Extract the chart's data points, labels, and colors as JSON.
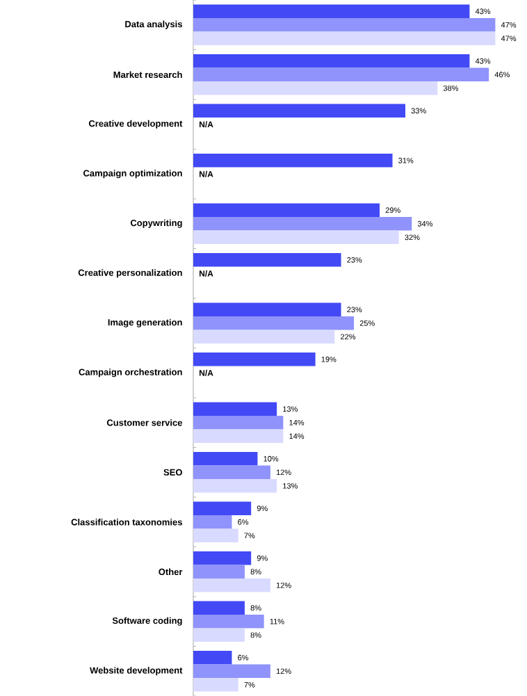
{
  "chart_data": {
    "type": "bar",
    "orientation": "horizontal",
    "tick_labels": "y",
    "categories": [
      "Data analysis",
      "Market research",
      "Creative development",
      "Campaign optimization",
      "Copywriting",
      "Creative personalization",
      "Image generation",
      "Campaign orchestration",
      "Customer service",
      "SEO",
      "Classification taxonomies",
      "Other",
      "Software coding",
      "Website development"
    ],
    "series": [
      {
        "color": "#4249f5",
        "values": [
          43,
          43,
          33,
          31,
          29,
          23,
          23,
          19,
          13,
          10,
          9,
          9,
          8,
          6
        ],
        "value_labels": [
          "43%",
          "43%",
          "33%",
          "31%",
          "29%",
          "23%",
          "23%",
          "19%",
          "13%",
          "10%",
          "9%",
          "9%",
          "8%",
          "6%"
        ]
      },
      {
        "color": "#8f93fb",
        "values": [
          47,
          46,
          null,
          null,
          34,
          null,
          25,
          null,
          14,
          12,
          6,
          8,
          11,
          12
        ],
        "value_labels": [
          "47%",
          "46%",
          "N/A",
          "N/A",
          "34%",
          "N/A",
          "25%",
          "N/A",
          "14%",
          "12%",
          "6%",
          "8%",
          "11%",
          "12%"
        ]
      },
      {
        "color": "#d9daff",
        "values": [
          47,
          38,
          null,
          null,
          32,
          null,
          22,
          null,
          14,
          13,
          7,
          12,
          8,
          7
        ],
        "value_labels": [
          "47%",
          "38%",
          null,
          null,
          "32%",
          null,
          "22%",
          null,
          "14%",
          "13%",
          "7%",
          "12%",
          "8%",
          "7%"
        ]
      }
    ]
  }
}
